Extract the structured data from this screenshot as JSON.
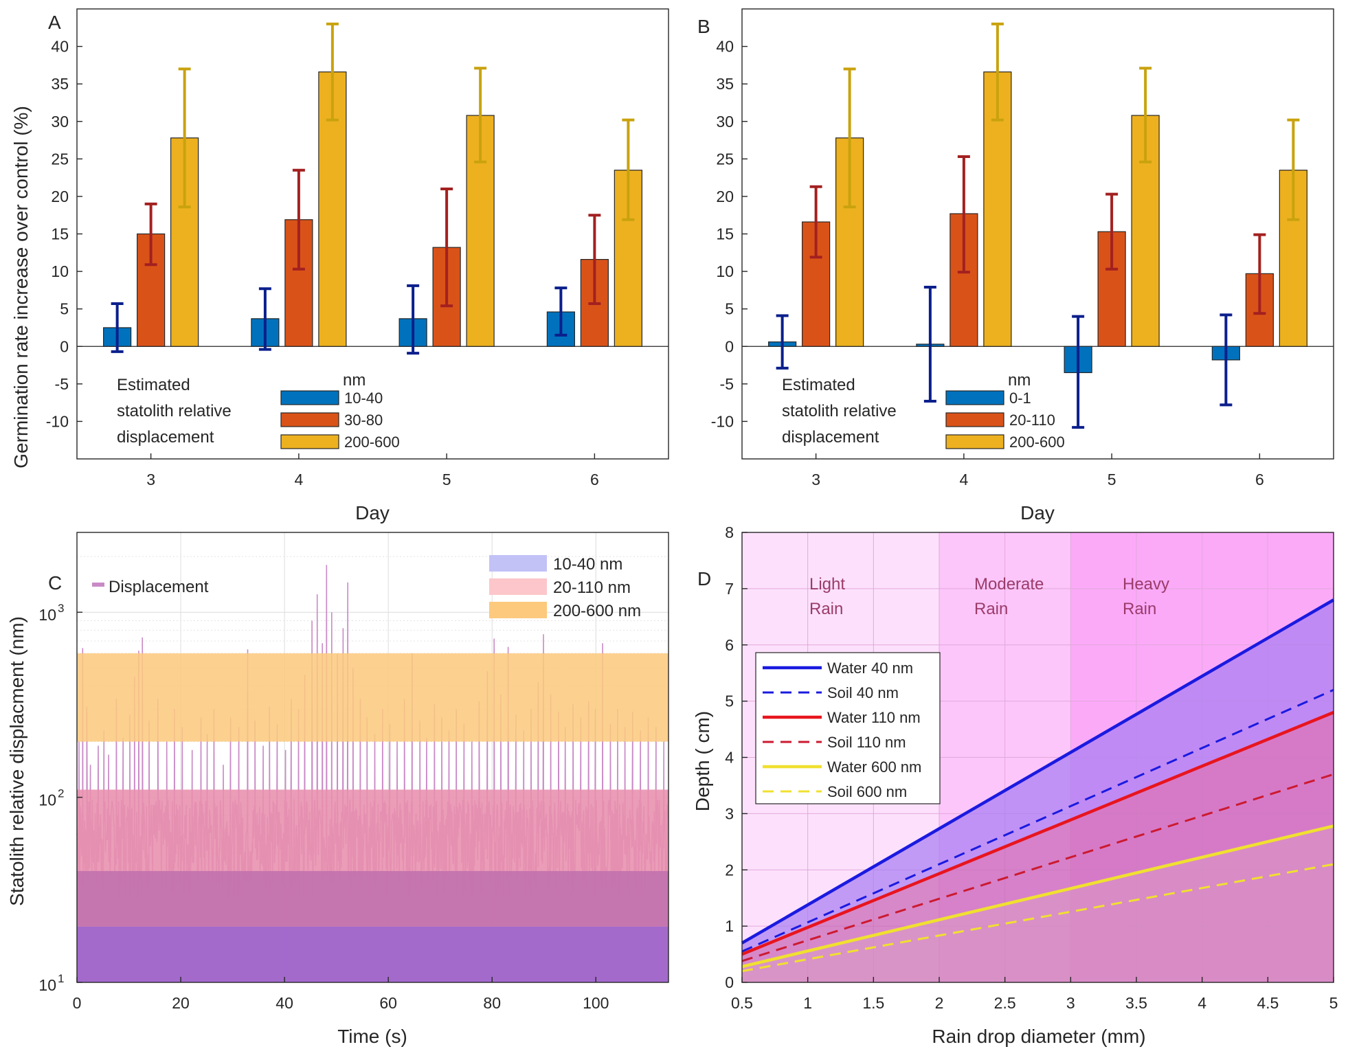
{
  "chart_data": [
    {
      "panel": "A",
      "type": "bar",
      "xlabel": "Day",
      "ylabel": "Germination rate increase over control (%)",
      "ylim": [
        -15,
        45
      ],
      "yticks": [
        -10,
        -5,
        0,
        5,
        10,
        15,
        20,
        25,
        30,
        35,
        40
      ],
      "categories": [
        "3",
        "4",
        "5",
        "6"
      ],
      "legend_text": [
        "Estimated",
        "statolith relative",
        "displacement"
      ],
      "legend_title": "nm",
      "series": [
        {
          "name": "10-40",
          "color": "#0072bd",
          "err_color": "#0b1f8c",
          "values": [
            2.5,
            3.7,
            3.7,
            4.6
          ],
          "lo": [
            -0.7,
            -0.4,
            -0.9,
            1.5
          ],
          "hi": [
            5.7,
            7.7,
            8.1,
            7.8
          ]
        },
        {
          "name": "30-80",
          "color": "#d95319",
          "err_color": "#a32020",
          "values": [
            15,
            16.9,
            13.2,
            11.6
          ],
          "lo": [
            10.9,
            10.3,
            5.4,
            5.7
          ],
          "hi": [
            19,
            23.5,
            21,
            17.5
          ]
        },
        {
          "name": "200-600",
          "color": "#edb120",
          "err_color": "#c9a20e",
          "values": [
            27.8,
            36.6,
            30.8,
            23.5
          ],
          "lo": [
            18.6,
            30.2,
            24.6,
            16.9
          ],
          "hi": [
            37,
            43,
            37.1,
            30.2
          ]
        }
      ]
    },
    {
      "panel": "B",
      "type": "bar",
      "xlabel": "Day",
      "ylabel": "",
      "ylim": [
        -15,
        45
      ],
      "yticks": [
        -10,
        -5,
        0,
        5,
        10,
        15,
        20,
        25,
        30,
        35,
        40
      ],
      "categories": [
        "3",
        "4",
        "5",
        "6"
      ],
      "legend_text": [
        "Estimated",
        "statolith relative",
        "displacement"
      ],
      "legend_title": "nm",
      "series": [
        {
          "name": "0-1",
          "color": "#0072bd",
          "err_color": "#0b1f8c",
          "values": [
            0.6,
            0.3,
            -3.5,
            -1.8
          ],
          "lo": [
            -2.9,
            -7.3,
            -10.8,
            -7.8
          ],
          "hi": [
            4.1,
            7.9,
            4,
            4.2
          ]
        },
        {
          "name": "20-110",
          "color": "#d95319",
          "err_color": "#a32020",
          "values": [
            16.6,
            17.7,
            15.3,
            9.7
          ],
          "lo": [
            11.9,
            9.9,
            10.3,
            4.4
          ],
          "hi": [
            21.3,
            25.3,
            20.3,
            14.9
          ]
        },
        {
          "name": "200-600",
          "color": "#edb120",
          "err_color": "#c9a20e",
          "values": [
            27.8,
            36.6,
            30.8,
            23.5
          ],
          "lo": [
            18.6,
            30.2,
            24.6,
            16.9
          ],
          "hi": [
            37,
            43,
            37.1,
            30.2
          ]
        }
      ]
    },
    {
      "panel": "C",
      "type": "line",
      "xlabel": "Time (s)",
      "ylabel": "Statolith relative displacment (nm)",
      "yscale": "log",
      "ylim": [
        10,
        2700
      ],
      "xlim": [
        0,
        114
      ],
      "xticks": [
        0,
        20,
        40,
        60,
        80,
        100
      ],
      "yticks": [
        {
          "base": "10",
          "exp": "1",
          "value": 10
        },
        {
          "base": "10",
          "exp": "2",
          "value": 100
        },
        {
          "base": "10",
          "exp": "3",
          "value": 1000
        }
      ],
      "series_name": "Displacement",
      "bands": [
        {
          "label": "10-40 nm",
          "lo": 10,
          "hi": 40,
          "color": "#c2c2f7"
        },
        {
          "label": "20-110 nm",
          "lo": 20,
          "hi": 110,
          "color": "#fcc6ca"
        },
        {
          "label": "200-600 nm",
          "lo": 200,
          "hi": 600,
          "color": "#fcc97d"
        }
      ],
      "peaks": [
        {
          "t": 0.4,
          "v": 200
        },
        {
          "t": 1.1,
          "v": 640
        },
        {
          "t": 1.9,
          "v": 310
        },
        {
          "t": 2.6,
          "v": 150
        },
        {
          "t": 4.1,
          "v": 190
        },
        {
          "t": 5.2,
          "v": 230
        },
        {
          "t": 6.1,
          "v": 170
        },
        {
          "t": 7.6,
          "v": 340
        },
        {
          "t": 8.9,
          "v": 210
        },
        {
          "t": 10.2,
          "v": 280
        },
        {
          "t": 11.1,
          "v": 450
        },
        {
          "t": 11.9,
          "v": 620
        },
        {
          "t": 12.6,
          "v": 730
        },
        {
          "t": 13.9,
          "v": 260
        },
        {
          "t": 15.6,
          "v": 340
        },
        {
          "t": 17.3,
          "v": 200
        },
        {
          "t": 18.8,
          "v": 300
        },
        {
          "t": 20.3,
          "v": 240
        },
        {
          "t": 22.2,
          "v": 180
        },
        {
          "t": 23.9,
          "v": 270
        },
        {
          "t": 25.1,
          "v": 220
        },
        {
          "t": 26.4,
          "v": 300
        },
        {
          "t": 28.2,
          "v": 150
        },
        {
          "t": 29.6,
          "v": 270
        },
        {
          "t": 31.2,
          "v": 240
        },
        {
          "t": 32.9,
          "v": 630
        },
        {
          "t": 34.3,
          "v": 260
        },
        {
          "t": 35.9,
          "v": 190
        },
        {
          "t": 37.1,
          "v": 310
        },
        {
          "t": 38.6,
          "v": 250
        },
        {
          "t": 40.2,
          "v": 180
        },
        {
          "t": 41.3,
          "v": 340
        },
        {
          "t": 42.7,
          "v": 300
        },
        {
          "t": 43.9,
          "v": 460
        },
        {
          "t": 45.3,
          "v": 900
        },
        {
          "t": 46.3,
          "v": 1250
        },
        {
          "t": 47.3,
          "v": 680
        },
        {
          "t": 48.1,
          "v": 1800
        },
        {
          "t": 49.1,
          "v": 1000
        },
        {
          "t": 50.2,
          "v": 600
        },
        {
          "t": 51.3,
          "v": 820
        },
        {
          "t": 52.2,
          "v": 1450
        },
        {
          "t": 53.2,
          "v": 500
        },
        {
          "t": 54.6,
          "v": 340
        },
        {
          "t": 55.9,
          "v": 270
        },
        {
          "t": 57.4,
          "v": 220
        },
        {
          "t": 58.9,
          "v": 300
        },
        {
          "t": 60.3,
          "v": 250
        },
        {
          "t": 61.7,
          "v": 200
        },
        {
          "t": 63.1,
          "v": 340
        },
        {
          "t": 64.6,
          "v": 600
        },
        {
          "t": 66.1,
          "v": 260
        },
        {
          "t": 67.4,
          "v": 210
        },
        {
          "t": 68.9,
          "v": 320
        },
        {
          "t": 70.3,
          "v": 270
        },
        {
          "t": 71.7,
          "v": 230
        },
        {
          "t": 73.1,
          "v": 300
        },
        {
          "t": 74.6,
          "v": 250
        },
        {
          "t": 76.1,
          "v": 200
        },
        {
          "t": 77.5,
          "v": 330
        },
        {
          "t": 79.1,
          "v": 480
        },
        {
          "t": 80.4,
          "v": 720
        },
        {
          "t": 81.7,
          "v": 360
        },
        {
          "t": 83.1,
          "v": 650
        },
        {
          "t": 84.6,
          "v": 280
        },
        {
          "t": 86.1,
          "v": 230
        },
        {
          "t": 87.5,
          "v": 300
        },
        {
          "t": 88.9,
          "v": 420
        },
        {
          "t": 89.9,
          "v": 760
        },
        {
          "t": 91.3,
          "v": 360
        },
        {
          "t": 92.8,
          "v": 290
        },
        {
          "t": 94.1,
          "v": 240
        },
        {
          "t": 95.6,
          "v": 320
        },
        {
          "t": 97.1,
          "v": 270
        },
        {
          "t": 98.6,
          "v": 330
        },
        {
          "t": 99.9,
          "v": 300
        },
        {
          "t": 101.3,
          "v": 680
        },
        {
          "t": 102.8,
          "v": 250
        },
        {
          "t": 104.2,
          "v": 300
        },
        {
          "t": 105.6,
          "v": 240
        },
        {
          "t": 107.1,
          "v": 290
        },
        {
          "t": 108.6,
          "v": 230
        },
        {
          "t": 110.1,
          "v": 270
        },
        {
          "t": 111.6,
          "v": 240
        },
        {
          "t": 113.1,
          "v": 200
        }
      ]
    },
    {
      "panel": "D",
      "type": "line",
      "xlabel": "Rain drop diameter (mm)",
      "ylabel": "Depth ( cm)",
      "xlim": [
        0.5,
        5
      ],
      "ylim": [
        0,
        8
      ],
      "xticks": [
        "0.5",
        "1",
        "1.5",
        "2",
        "2.5",
        "3",
        "3.5",
        "4",
        "4.5",
        "5"
      ],
      "yticks": [
        "0",
        "1",
        "2",
        "3",
        "4",
        "5",
        "6",
        "7",
        "8"
      ],
      "regions": [
        {
          "label1": "Light",
          "label2": "Rain",
          "x0": 0.5,
          "x1": 2,
          "color": "#fde1fc"
        },
        {
          "label1": "Moderate",
          "label2": "Rain",
          "x0": 2,
          "x1": 3,
          "color": "#fcc6fa"
        },
        {
          "label1": "Heavy",
          "label2": "Rain",
          "x0": 3,
          "x1": 5,
          "color": "#fbaaf8"
        }
      ],
      "series": [
        {
          "name": "Water 40 nm",
          "color": "#1a1ae0",
          "dash": false,
          "y0": 0.7,
          "y1": 6.8
        },
        {
          "name": "Soil 40 nm",
          "color": "#1a1ae0",
          "dash": true,
          "y0": 0.55,
          "y1": 5.2
        },
        {
          "name": "Water 110 nm",
          "color": "#e8151e",
          "dash": false,
          "y0": 0.5,
          "y1": 4.8
        },
        {
          "name": "Soil 110 nm",
          "color": "#cc1a30",
          "dash": true,
          "y0": 0.38,
          "y1": 3.7
        },
        {
          "name": "Water 600 nm",
          "color": "#f0e030",
          "dash": false,
          "y0": 0.28,
          "y1": 2.78
        },
        {
          "name": "Soil 600 nm",
          "color": "#f0e030",
          "dash": true,
          "y0": 0.2,
          "y1": 2.1
        }
      ]
    }
  ]
}
